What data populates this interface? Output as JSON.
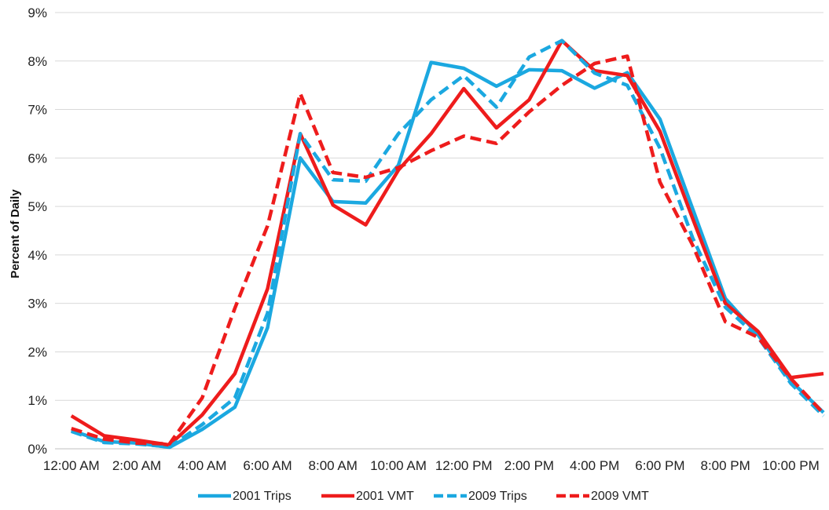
{
  "chart_data": {
    "type": "line",
    "title": "",
    "xlabel": "",
    "ylabel": "Percent of Daily",
    "ylim": [
      0,
      9
    ],
    "yticks": [
      "0%",
      "1%",
      "2%",
      "3%",
      "4%",
      "5%",
      "6%",
      "7%",
      "8%",
      "9%"
    ],
    "x_tick_labels": [
      "12:00 AM",
      "2:00 AM",
      "4:00 AM",
      "6:00 AM",
      "8:00 AM",
      "10:00 AM",
      "12:00 PM",
      "2:00 PM",
      "4:00 PM",
      "6:00 PM",
      "8:00 PM",
      "10:00 PM"
    ],
    "grid": true,
    "legend_position": "bottom",
    "series": [
      {
        "name": "2001 Trips",
        "color": "#1ba8e0",
        "dash": "solid",
        "values": [
          0.38,
          0.15,
          0.12,
          0.03,
          0.4,
          0.86,
          2.5,
          6.0,
          5.1,
          5.07,
          5.85,
          7.97,
          7.85,
          7.48,
          7.82,
          7.8,
          7.44,
          7.76,
          6.8,
          4.95,
          3.1,
          2.35,
          1.4,
          0.75
        ]
      },
      {
        "name": "2001 VMT",
        "color": "#ee1c1c",
        "dash": "solid",
        "values": [
          0.68,
          0.27,
          0.18,
          0.08,
          0.7,
          1.55,
          3.3,
          6.5,
          5.03,
          4.62,
          5.75,
          6.5,
          7.43,
          6.62,
          7.2,
          8.42,
          7.8,
          7.7,
          6.55,
          4.75,
          3.0,
          2.42,
          1.47,
          1.55
        ]
      },
      {
        "name": "2009 Trips",
        "color": "#1ba8e0",
        "dash": "dashed",
        "values": [
          0.36,
          0.13,
          0.1,
          0.04,
          0.5,
          1.05,
          2.8,
          6.5,
          5.55,
          5.52,
          6.5,
          7.2,
          7.7,
          7.05,
          8.08,
          8.42,
          7.75,
          7.5,
          6.2,
          4.35,
          2.92,
          2.3,
          1.35,
          0.68
        ]
      },
      {
        "name": "2009 VMT",
        "color": "#ee1c1c",
        "dash": "dashed",
        "values": [
          0.42,
          0.2,
          0.12,
          0.1,
          1.05,
          2.9,
          4.6,
          7.33,
          5.7,
          5.6,
          5.8,
          6.15,
          6.45,
          6.3,
          6.95,
          7.5,
          7.95,
          8.1,
          5.5,
          4.2,
          2.62,
          2.3,
          1.45,
          0.73
        ]
      }
    ]
  }
}
